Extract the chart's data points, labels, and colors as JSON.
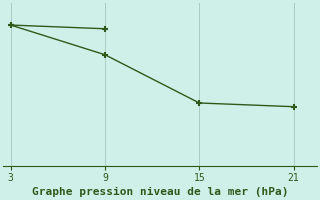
{
  "background_color": "#cff0e8",
  "line1_x": [
    3,
    9
  ],
  "line1_y": [
    1024.0,
    1023.5
  ],
  "line2_x": [
    3,
    9,
    15,
    21
  ],
  "line2_y": [
    1024.0,
    1020.0,
    1013.5,
    1013.0
  ],
  "line_color": "#2d5a1b",
  "marker": "+",
  "marker_size": 5,
  "marker_linewidth": 1.5,
  "linewidth": 1.0,
  "xticks": [
    3,
    9,
    15,
    21
  ],
  "xlabel": "Graphe pression niveau de la mer (hPa)",
  "xlabel_color": "#2d5a1b",
  "xlabel_fontsize": 8,
  "tick_color": "#2d5a1b",
  "tick_fontsize": 7,
  "grid_color": "#a8ccc4",
  "ylim": [
    1005.0,
    1027.0
  ],
  "xlim": [
    2.5,
    22.5
  ]
}
